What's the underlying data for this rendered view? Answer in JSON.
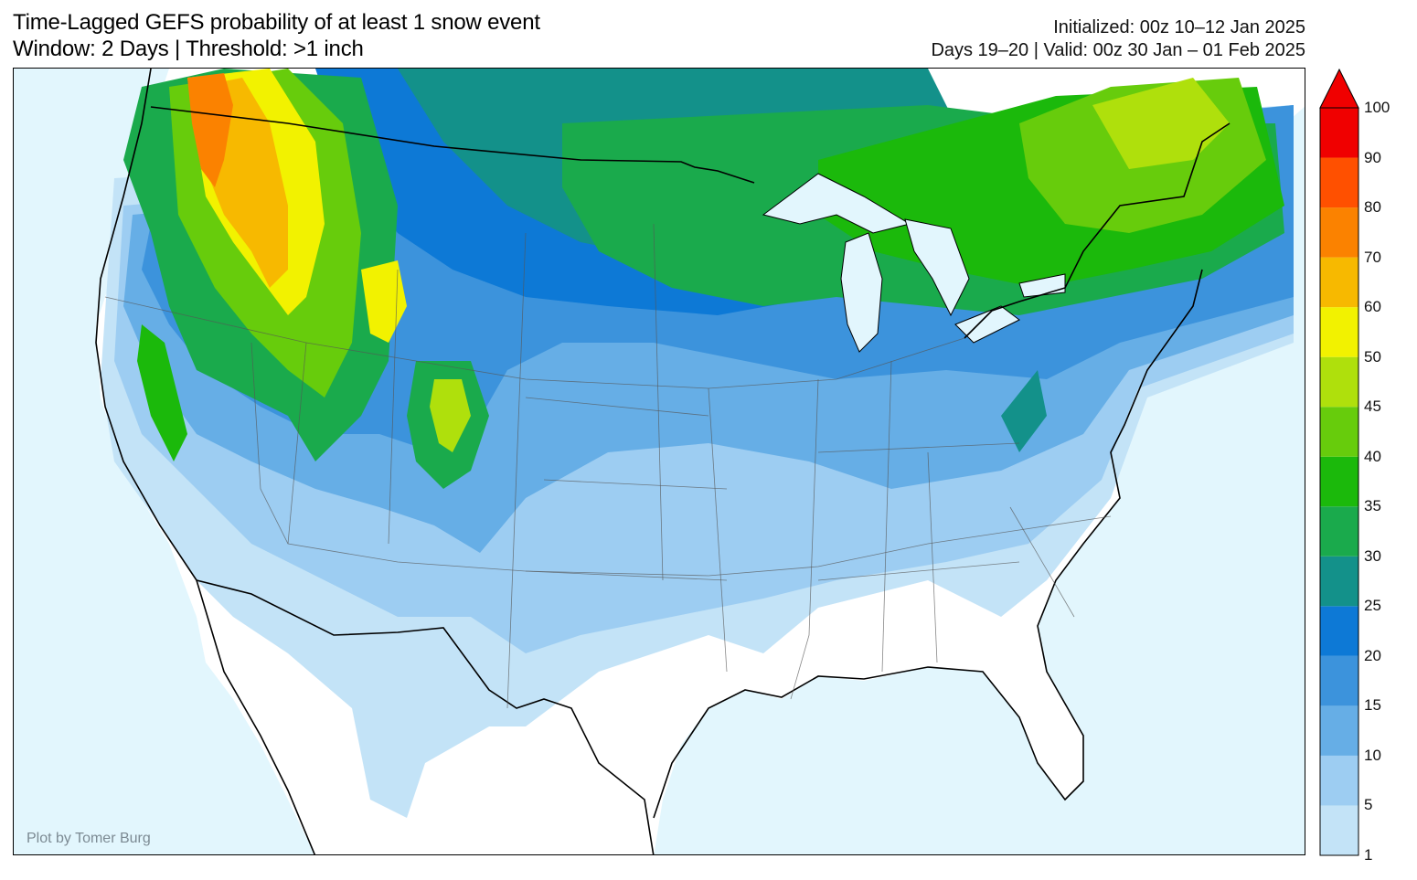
{
  "title": {
    "line1": "Time-Lagged GEFS probability of at least 1 snow event",
    "line2": "Window: 2 Days | Threshold: >1 inch",
    "init": "Initialized: 00z 10–12 Jan 2025",
    "valid": "Days 19–20 | Valid: 00z 30 Jan – 01 Feb 2025"
  },
  "credit": "Plot by Tomer Burg",
  "colors": {
    "ocean": "#e2f6fd",
    "land": "#ffffff"
  },
  "colorbar": {
    "levels": [
      "1",
      "5",
      "10",
      "15",
      "20",
      "25",
      "30",
      "35",
      "40",
      "45",
      "50",
      "60",
      "70",
      "80",
      "90",
      "100"
    ],
    "colors": [
      "#c3e3f7",
      "#9dcdf2",
      "#66aee6",
      "#3c93dc",
      "#0d79d6",
      "#13918a",
      "#1aaa4c",
      "#1bb90b",
      "#67cc0c",
      "#afe00c",
      "#f2f200",
      "#f7b900",
      "#fb8200",
      "#ff5000",
      "#f00000"
    ],
    "extend": "max"
  }
}
